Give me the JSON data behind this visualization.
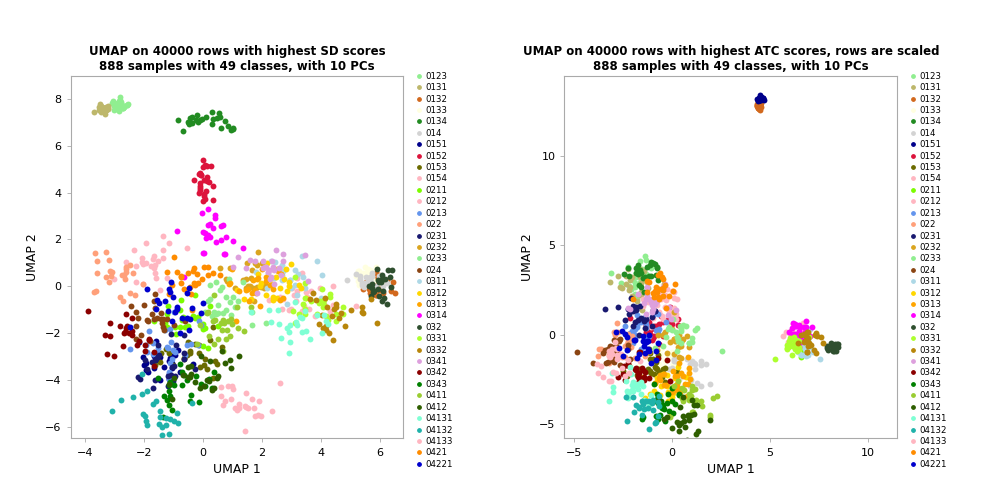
{
  "title1": "UMAP on 40000 rows with highest SD scores\n888 samples with 49 classes, with 10 PCs",
  "title2": "UMAP on 40000 rows with highest ATC scores, rows are scaled\n888 samples with 49 classes, with 10 PCs",
  "xlabel": "UMAP 1",
  "ylabel": "UMAP 2",
  "legend_classes": [
    "0123",
    "0131",
    "0132",
    "0133",
    "0134",
    "014",
    "0151",
    "0152",
    "0153",
    "0154",
    "0211",
    "0212",
    "0213",
    "022",
    "0231",
    "0232",
    "0233",
    "024",
    "0311",
    "0312",
    "0313",
    "0314",
    "032",
    "0331",
    "0332",
    "0341",
    "0342",
    "0343",
    "0411",
    "0412",
    "04131",
    "04132",
    "04133",
    "0421",
    "04221"
  ],
  "colors": {
    "0123": "#90EE90",
    "0131": "#BDB76B",
    "0132": "#D2691E",
    "0133": "#FFFFE0",
    "0134": "#228B22",
    "014": "#D3D3D3",
    "0151": "#00008B",
    "0152": "#DC143C",
    "0153": "#6B6B00",
    "0154": "#FFB6C1",
    "0211": "#7CFC00",
    "0212": "#FFB6C1",
    "0213": "#6495ED",
    "022": "#FFA07A",
    "0231": "#191970",
    "0232": "#DAA520",
    "0233": "#90EE90",
    "024": "#8B4513",
    "0311": "#ADD8E6",
    "0312": "#FFD700",
    "0313": "#FFA500",
    "0314": "#FF00FF",
    "032": "#2F4F2F",
    "0331": "#ADFF2F",
    "0332": "#B8860B",
    "0341": "#DDA0DD",
    "0342": "#8B0000",
    "0343": "#008000",
    "0411": "#9ACD32",
    "0412": "#2E5E00",
    "04131": "#7FFFD4",
    "04132": "#20B2AA",
    "04133": "#FFB6C1",
    "0421": "#FF8C00",
    "04221": "#0000CD"
  },
  "figsize": [
    10.08,
    5.04
  ],
  "dpi": 100,
  "background": "#ffffff",
  "plot1_xlim": [
    -4.5,
    6.8
  ],
  "plot1_ylim": [
    -6.5,
    9.0
  ],
  "plot1_xticks": [
    -4,
    -2,
    0,
    2,
    4,
    6
  ],
  "plot1_yticks": [
    -6,
    -4,
    -2,
    0,
    2,
    4,
    6,
    8
  ],
  "plot2_xlim": [
    -5.5,
    11.5
  ],
  "plot2_ylim": [
    -5.8,
    14.5
  ],
  "plot2_xticks": [
    -5,
    0,
    5,
    10
  ],
  "plot2_yticks": [
    -5,
    0,
    5,
    10
  ],
  "marker_size": 18
}
